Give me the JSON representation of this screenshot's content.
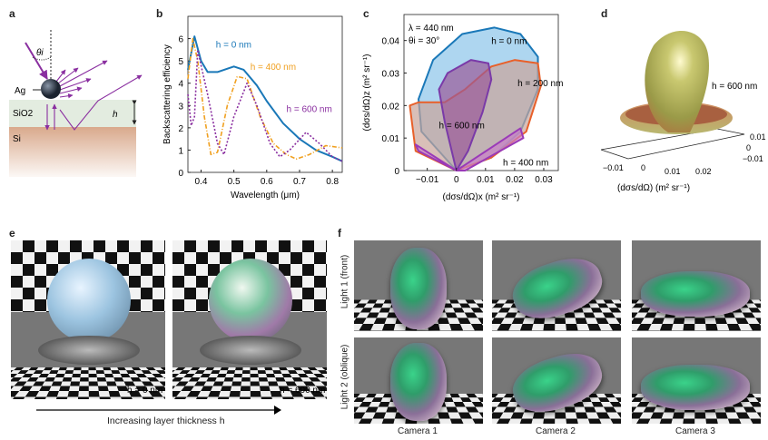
{
  "panels": {
    "a": {
      "label": "a",
      "theta": "θi",
      "ag": "Ag",
      "sio2": "SiO2",
      "si": "Si",
      "h": "h"
    },
    "b": {
      "label": "b"
    },
    "c": {
      "label": "c",
      "annot_lambda": "λ = 440 nm",
      "annot_theta": "θi = 30°"
    },
    "d": {
      "label": "d",
      "annot": "h = 600 nm",
      "xlabel": "(dσs/dΩ) (m² sr⁻¹)",
      "xticks": [
        "−0.01",
        "0",
        "0.01",
        "0.02"
      ],
      "yticks": [
        "0.01",
        "0",
        "−0.01"
      ]
    },
    "e": {
      "label": "e",
      "left_caption": "h = 0 nm",
      "right_caption": "h = 600 nm",
      "arrow_caption": "Increasing layer thickness h"
    },
    "f": {
      "label": "f",
      "rows": [
        "Light 1 (front)",
        "Light 2 (oblique)"
      ],
      "cols": [
        "Camera 1",
        "Camera 2",
        "Camera 3"
      ]
    }
  },
  "colors": {
    "blue": "#1a78b8",
    "orange": "#f0a020",
    "purple": "#8a2fa0",
    "red_orange": "#e8602a",
    "violet": "#7a3aa8"
  },
  "chart_data": [
    {
      "type": "line",
      "xlabel": "Wavelength (μm)",
      "ylabel": "Backscattering efficiency",
      "xlim": [
        0.36,
        0.83
      ],
      "ylim": [
        0,
        7
      ],
      "xticks": [
        0.4,
        0.5,
        0.6,
        0.7,
        0.8
      ],
      "yticks": [
        0,
        1,
        2,
        3,
        4,
        5,
        6
      ],
      "series": [
        {
          "name": "h = 0 nm",
          "color": "#1a78b8",
          "style": "solid",
          "x": [
            0.36,
            0.38,
            0.4,
            0.42,
            0.45,
            0.5,
            0.53,
            0.57,
            0.6,
            0.65,
            0.7,
            0.75,
            0.8,
            0.83
          ],
          "y": [
            4.6,
            6.1,
            5.0,
            4.5,
            4.5,
            4.75,
            4.6,
            3.9,
            3.2,
            2.2,
            1.5,
            1.0,
            0.7,
            0.5
          ]
        },
        {
          "name": "h = 400 nm",
          "color": "#f0a020",
          "style": "dashdot",
          "x": [
            0.36,
            0.375,
            0.39,
            0.41,
            0.43,
            0.45,
            0.48,
            0.51,
            0.54,
            0.58,
            0.62,
            0.66,
            0.69,
            0.73,
            0.78,
            0.83
          ],
          "y": [
            4.2,
            6.0,
            5.0,
            2.5,
            0.8,
            0.9,
            3.0,
            4.3,
            4.2,
            2.5,
            1.3,
            0.8,
            0.6,
            0.8,
            1.2,
            1.1
          ]
        },
        {
          "name": "h = 600 nm",
          "color": "#8a2fa0",
          "style": "dotted",
          "x": [
            0.36,
            0.37,
            0.38,
            0.39,
            0.4,
            0.42,
            0.45,
            0.47,
            0.5,
            0.54,
            0.57,
            0.61,
            0.64,
            0.67,
            0.72,
            0.76,
            0.8,
            0.83
          ],
          "y": [
            3.5,
            2.1,
            2.5,
            5.5,
            4.8,
            3.5,
            1.3,
            0.8,
            2.5,
            4.0,
            3.0,
            1.3,
            0.7,
            1.0,
            1.8,
            1.3,
            0.7,
            0.5
          ]
        }
      ]
    },
    {
      "type": "area",
      "xlabel": "(dσs/dΩ)x (m² sr⁻¹)",
      "ylabel": "(dσs/dΩ)z (m² sr⁻¹)",
      "xlim": [
        -0.018,
        0.035
      ],
      "ylim": [
        0,
        0.048
      ],
      "xticks": [
        "−0.01",
        "0",
        "0.01",
        "0.02",
        "0.03"
      ],
      "yticks": [
        "0",
        "0.01",
        "0.02",
        "0.03",
        "0.04"
      ],
      "xtickvals": [
        -0.01,
        0,
        0.01,
        0.02,
        0.03
      ],
      "ytickvals": [
        0,
        0.01,
        0.02,
        0.03,
        0.04
      ],
      "series": [
        {
          "name": "h = 0 nm",
          "stroke": "#1a78b8",
          "fill": "#8cc4ea",
          "x": [
            0,
            -0.012,
            -0.013,
            -0.008,
            0.002,
            0.013,
            0.022,
            0.028,
            0.028,
            0.022,
            0.012,
            0
          ],
          "y": [
            0,
            0.012,
            0.022,
            0.034,
            0.042,
            0.044,
            0.042,
            0.035,
            0.025,
            0.012,
            0.004,
            0
          ]
        },
        {
          "name": "h = 200 nm",
          "stroke": "#e8602a",
          "fill": "#c9a49a",
          "x": [
            0,
            -0.014,
            -0.016,
            -0.013,
            -0.004,
            0.003,
            0.012,
            0.02,
            0.028,
            0.029,
            0.024,
            0.012,
            0
          ],
          "y": [
            0,
            0.006,
            0.02,
            0.021,
            0.021,
            0.025,
            0.032,
            0.034,
            0.033,
            0.026,
            0.012,
            0.004,
            0
          ]
        },
        {
          "name": "h = 600 nm",
          "stroke": "#7a3aa8",
          "fill": "#9a5a98",
          "x": [
            0,
            -0.004,
            -0.006,
            -0.003,
            0.005,
            0.011,
            0.012,
            0.009,
            0.004,
            0
          ],
          "y": [
            0,
            0.015,
            0.025,
            0.03,
            0.034,
            0.033,
            0.028,
            0.018,
            0.006,
            0
          ]
        },
        {
          "name": "h = 400 nm",
          "stroke": "#9a3ab8",
          "fill": "#c880c8",
          "x": [
            0,
            -0.014,
            -0.013,
            0,
            0.022,
            0.023,
            0.003,
            0
          ],
          "y": [
            0,
            0.008,
            0.006,
            0,
            0.013,
            0.01,
            0,
            0
          ]
        }
      ]
    }
  ]
}
